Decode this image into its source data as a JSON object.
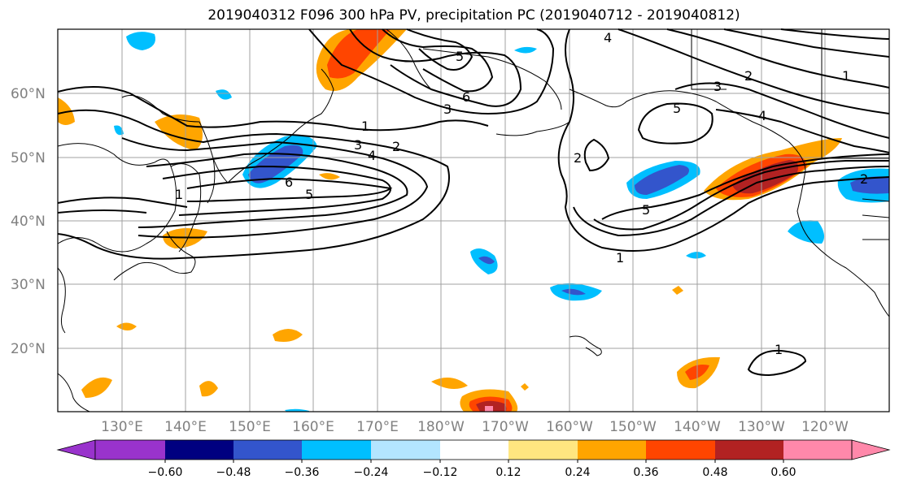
{
  "title": "2019040312 F096 300 hPa PV, precipitation PC (2019040712 - 2019040812)",
  "lat_labels": [
    "60°N",
    "50°N",
    "40°N",
    "30°N",
    "20°N"
  ],
  "lon_labels": [
    "130°E",
    "140°E",
    "150°E",
    "160°E",
    "170°E",
    "180°W",
    "170°W",
    "160°W",
    "150°W",
    "140°W",
    "130°W",
    "120°W"
  ],
  "colorbar": {
    "ticks": [
      "−0.60",
      "−0.48",
      "−0.36",
      "−0.24",
      "−0.12",
      "0.12",
      "0.24",
      "0.36",
      "0.48",
      "0.60"
    ],
    "colors": [
      "#9933cc",
      "#000080",
      "#3355cc",
      "#00bfff",
      "#b3e5ff",
      "#ffffff",
      "#ffe680",
      "#ffa500",
      "#ff4500",
      "#b22222",
      "#ff88aa"
    ]
  },
  "contour_labels": [
    "1",
    "2",
    "3",
    "4",
    "5",
    "6",
    "1",
    "2",
    "3",
    "4",
    "5",
    "6",
    "2",
    "5",
    "1",
    "3",
    "4",
    "5",
    "2",
    "1",
    "1"
  ]
}
